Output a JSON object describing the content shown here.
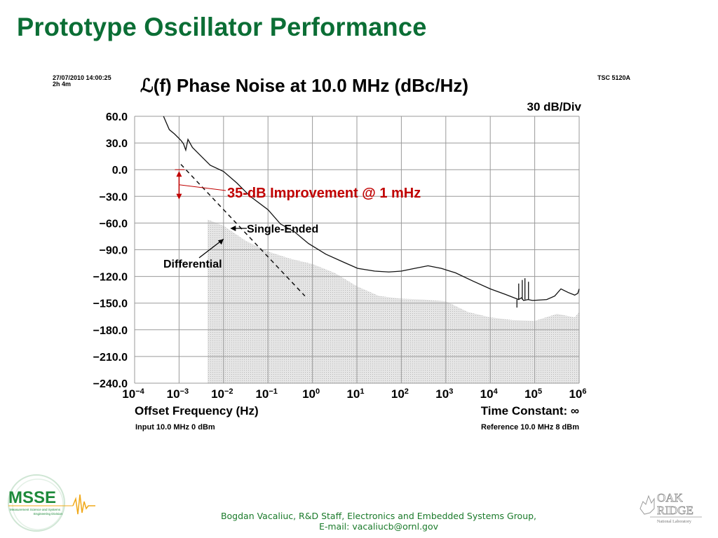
{
  "slide": {
    "title": "Prototype Oscillator Performance",
    "footer_line1": "Bogdan Vacaliuc, R&D Staff, Electronics and Embedded Systems Group,",
    "footer_line2": "E-mail: vacaliucb@ornl.gov",
    "logo_left": {
      "name": "MSSE",
      "subtitle_line1": "Measurement Science and Systems",
      "subtitle_line2": "Engineering Division"
    },
    "logo_right": {
      "line1": "OAK",
      "line2": "RIDGE",
      "line3": "National Laboratory"
    },
    "colors": {
      "title": "#0b6e35",
      "annotation": "#c00000",
      "footer": "#1a7a2a"
    }
  },
  "chart_data": {
    "type": "line",
    "title": "ℒ(f) Phase Noise at 10.0 MHz (dBc/Hz)",
    "timestamp": "27/07/2010 14:00:25",
    "duration": "2h 4m",
    "instrument": "TSC 5120A",
    "scale_label": "30 dB/Div",
    "xlabel": "Offset Frequency (Hz)",
    "ylabel": "",
    "xscale": "log",
    "xlim_log10": [
      -4,
      6
    ],
    "ylim": [
      -240,
      60
    ],
    "grid": true,
    "x_tick_labels": [
      {
        "base": "10",
        "exp": "−4"
      },
      {
        "base": "10",
        "exp": "−3"
      },
      {
        "base": "10",
        "exp": "−2"
      },
      {
        "base": "10",
        "exp": "−1"
      },
      {
        "base": "10",
        "exp": "0"
      },
      {
        "base": "10",
        "exp": "1"
      },
      {
        "base": "10",
        "exp": "2"
      },
      {
        "base": "10",
        "exp": "3"
      },
      {
        "base": "10",
        "exp": "4"
      },
      {
        "base": "10",
        "exp": "5"
      },
      {
        "base": "10",
        "exp": "6"
      }
    ],
    "y_tick_labels": [
      "60.0",
      "30.0",
      "0.0",
      "−30.0",
      "−60.0",
      "−90.0",
      "−120.0",
      "−150.0",
      "−180.0",
      "−210.0",
      "−240.0"
    ],
    "y_ticks": [
      60,
      30,
      0,
      -30,
      -60,
      -90,
      -120,
      -150,
      -180,
      -210,
      -240
    ],
    "time_constant": "Time Constant: ∞",
    "input_info": "Input 10.0 MHz 0 dBm",
    "reference_info": "Reference 10.0 MHz 8 dBm",
    "series": [
      {
        "name": "Single-Ended",
        "style": "solid",
        "log10_x": [
          -3.35,
          -3.22,
          -3.1,
          -2.96,
          -2.9,
          -2.85,
          -2.8,
          -2.7,
          -2.5,
          -2.3,
          -2.0,
          -1.7,
          -1.4,
          -1.0,
          -0.72,
          -0.4,
          -0.09,
          0.3,
          0.7,
          1.02,
          1.4,
          1.72,
          2.0,
          2.3,
          2.6,
          2.9,
          3.22,
          3.6,
          4.0,
          4.33,
          4.64,
          4.7,
          4.75,
          4.85,
          4.95,
          5.27,
          5.45,
          5.59,
          5.75,
          5.9,
          5.97,
          6.0
        ],
        "values": [
          60,
          45,
          40,
          33,
          29,
          22,
          34,
          25,
          15,
          5,
          -2,
          -15,
          -30,
          -45,
          -61,
          -70,
          -83,
          -95,
          -104,
          -111,
          -114,
          -115,
          -114,
          -111,
          -108,
          -111,
          -116,
          -125,
          -134,
          -140,
          -146,
          -144,
          -147,
          -146,
          -147,
          -146,
          -142,
          -134,
          -138,
          -141,
          -139,
          -134
        ]
      },
      {
        "name": "Differential",
        "style": "dashed",
        "log10_x": [
          -2.96,
          -0.17
        ],
        "values": [
          6,
          -142
        ]
      },
      {
        "name": "Noise floor",
        "style": "filled-area",
        "log10_x": [
          -2.36,
          -2.0,
          -1.5,
          -1.0,
          -0.5,
          0.0,
          0.5,
          1.0,
          1.5,
          2.0,
          2.5,
          3.0,
          3.5,
          4.0,
          4.5,
          5.0,
          5.5,
          5.9,
          6.0
        ],
        "values": [
          -56,
          -63,
          -80,
          -92,
          -100,
          -106,
          -116,
          -131,
          -142,
          -145,
          -146,
          -148,
          -160,
          -166,
          -169,
          -170,
          -162,
          -166,
          -160
        ]
      }
    ],
    "annotations": [
      {
        "text": "35-dB Improvement @ 1 mHz",
        "color": "#c00000",
        "at_log10_x": -3.0,
        "from": 0,
        "to": -35
      },
      {
        "text": "Single-Ended",
        "arrow_to_log10_x": -1.85,
        "arrow_to_value": -66
      },
      {
        "text": "Differential",
        "arrow_to_log10_x": -2.0,
        "arrow_to_value": -78
      }
    ]
  }
}
